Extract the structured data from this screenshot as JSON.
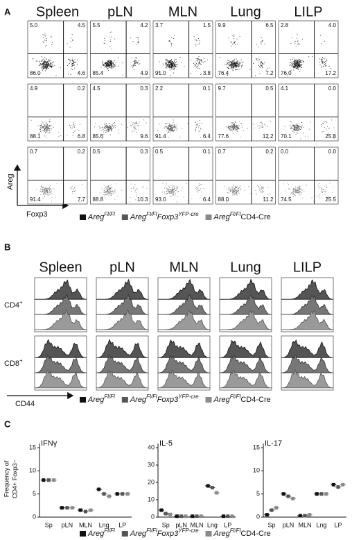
{
  "panel_a": {
    "label": "A",
    "tissues": [
      "Spleen",
      "pLN",
      "MLN",
      "Lung",
      "LILP"
    ],
    "quadrants": [
      [
        [
          "5.0",
          "4.5",
          "86.0",
          "4.6"
        ],
        [
          "5.5",
          "4.2",
          "85.4",
          "4.9"
        ],
        [
          "3.7",
          "1.5",
          "91.0",
          "3.8"
        ],
        [
          "9.9",
          "6.5",
          "76.4",
          "7.2"
        ],
        [
          "2.8",
          "4.0",
          "76.0",
          "17.2"
        ]
      ],
      [
        [
          "4.9",
          "0.2",
          "88.1",
          "6.8"
        ],
        [
          "4.5",
          "0.3",
          "85.6",
          "9.6"
        ],
        [
          "2.2",
          "0.1",
          "91.4",
          "6.4"
        ],
        [
          "9.7",
          "0.5",
          "77.6",
          "12.2"
        ],
        [
          "4.1",
          "0.0",
          "70.1",
          "25.8"
        ]
      ],
      [
        [
          "0.7",
          "0.2",
          "91.4",
          "7.7"
        ],
        [
          "0.5",
          "0.3",
          "88.8",
          "10.3"
        ],
        [
          "0.5",
          "0.1",
          "93.0",
          "6.4"
        ],
        [
          "0.7",
          "0.2",
          "88.0",
          "11.2"
        ],
        [
          "0.0",
          "0.0",
          "74.5",
          "25.5"
        ]
      ]
    ],
    "y_axis": "Areg",
    "x_axis": "Foxp3"
  },
  "panel_b": {
    "label": "B",
    "tissues": [
      "Spleen",
      "pLN",
      "MLN",
      "Lung",
      "LILP"
    ],
    "rows": [
      {
        "base": "CD4",
        "sup": "+"
      },
      {
        "base": "CD8",
        "sup": "+"
      }
    ],
    "x_axis": "CD44"
  },
  "panel_c": {
    "label": "C",
    "ylabel": [
      "Frequency of",
      "CD4+ Foxp3−"
    ]
  },
  "legend": [
    {
      "color": "#111111",
      "parts": [
        {
          "text": "Areg",
          "style": "i"
        },
        {
          "text": "Fl/Fl",
          "style": "sup"
        }
      ]
    },
    {
      "color": "#555555",
      "parts": [
        {
          "text": "Areg",
          "style": "i"
        },
        {
          "text": "Fl/Fl",
          "style": "sup"
        },
        {
          "text": "Foxp3",
          "style": "i"
        },
        {
          "text": "YFP-cre",
          "style": "sup"
        }
      ]
    },
    {
      "color": "#8a8a8a",
      "parts": [
        {
          "text": "Areg",
          "style": "i"
        },
        {
          "text": "Fl/Fl",
          "style": "sup"
        },
        {
          "text": "CD4-Cre",
          "style": "n"
        }
      ]
    }
  ],
  "chart_data": [
    {
      "type": "dot",
      "title": "IFNγ",
      "categories": [
        "Sp",
        "pLN",
        "MLN",
        "Lng",
        "LP"
      ],
      "series": [
        {
          "color": "#111111",
          "values": [
            8,
            2,
            1.5,
            6,
            5
          ]
        },
        {
          "color": "#555555",
          "values": [
            8,
            2,
            1.2,
            5,
            5
          ]
        },
        {
          "color": "#8a8a8a",
          "values": [
            8,
            2,
            1.5,
            4.5,
            5
          ]
        }
      ],
      "ylim": [
        0,
        15
      ],
      "yticks": [
        0,
        5,
        10,
        15
      ]
    },
    {
      "type": "dot",
      "title": "IL-5",
      "categories": [
        "Sp",
        "pLN",
        "MLN",
        "Lng",
        "LP"
      ],
      "series": [
        {
          "color": "#111111",
          "values": [
            4,
            0.5,
            0.5,
            18,
            0.5
          ]
        },
        {
          "color": "#555555",
          "values": [
            2,
            0.5,
            0.5,
            17,
            0.5
          ]
        },
        {
          "color": "#8a8a8a",
          "values": [
            1.5,
            0.5,
            0.5,
            14,
            0.5
          ]
        }
      ],
      "ylim": [
        0,
        40
      ],
      "yticks": [
        0,
        10,
        20,
        30,
        40
      ]
    },
    {
      "type": "dot",
      "title": "IL-17",
      "categories": [
        "Sp",
        "pLN",
        "MLN",
        "Lng",
        "LP"
      ],
      "series": [
        {
          "color": "#111111",
          "values": [
            0.5,
            5,
            0.3,
            5,
            7
          ]
        },
        {
          "color": "#555555",
          "values": [
            1.5,
            4.5,
            0.3,
            5,
            6.5
          ]
        },
        {
          "color": "#8a8a8a",
          "values": [
            2,
            4,
            0.5,
            5,
            7
          ]
        }
      ],
      "ylim": [
        0,
        15
      ],
      "yticks": [
        0,
        5,
        10,
        15
      ]
    }
  ]
}
